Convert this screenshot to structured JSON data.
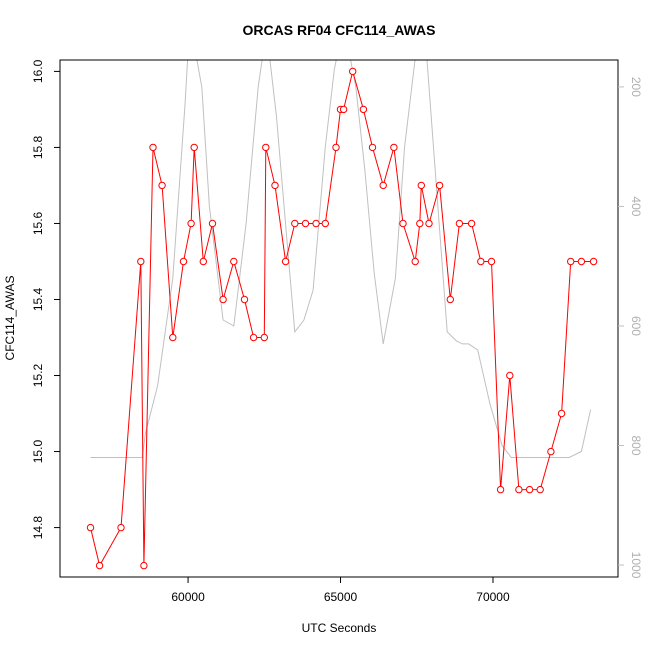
{
  "chart_data": {
    "type": "line",
    "title": "ORCAS RF04 CFC114_AWAS",
    "xlabel": "UTC Seconds",
    "ylabel": "CFC114_AWAS",
    "xlim": [
      55800,
      74100
    ],
    "ylim": [
      14.67,
      16.03
    ],
    "x_ticks": [
      60000,
      65000,
      70000
    ],
    "x_tick_labels": [
      "60000",
      "65000",
      "70000"
    ],
    "y_ticks": [
      14.8,
      15.0,
      15.2,
      15.4,
      15.6,
      15.8,
      16.0
    ],
    "y_tick_labels": [
      "14.8",
      "15.0",
      "15.2",
      "15.4",
      "15.6",
      "15.8",
      "16.0"
    ],
    "y2_reversed": true,
    "y2lim": [
      1020,
      155
    ],
    "y2_ticks": [
      200,
      400,
      600,
      800,
      1000
    ],
    "y2_tick_labels": [
      "200",
      "400",
      "600",
      "800",
      "1000"
    ],
    "grid": false,
    "legend": "none",
    "colors": {
      "primary": "#ff0000",
      "secondary": "#c0c0c0",
      "axis": "#000000"
    },
    "series": [
      {
        "x": [
          56800,
          57100,
          57800,
          58450,
          58550,
          58850,
          59150,
          59500,
          59850,
          60100,
          60200,
          60500,
          60800,
          61150,
          61500,
          61850,
          62150,
          62500,
          62550,
          62850,
          63200,
          63500,
          63850,
          64200,
          64500,
          64850,
          65000,
          65100,
          65400,
          65750,
          66050,
          66400,
          66750,
          67050,
          67450,
          67600,
          67650,
          67900,
          68250,
          68600,
          68900,
          69300,
          69600,
          69950,
          70250,
          70550,
          70850,
          71200,
          71550,
          71900,
          72250,
          72550,
          72900,
          73300
        ],
        "y": [
          14.8,
          14.7,
          14.8,
          15.5,
          14.7,
          15.8,
          15.7,
          15.3,
          15.5,
          15.6,
          15.8,
          15.5,
          15.6,
          15.4,
          15.5,
          15.4,
          15.3,
          15.3,
          15.8,
          15.7,
          15.5,
          15.6,
          15.6,
          15.6,
          15.6,
          15.8,
          15.9,
          15.9,
          16.0,
          15.9,
          15.8,
          15.7,
          15.8,
          15.6,
          15.5,
          15.6,
          15.7,
          15.6,
          15.7,
          15.4,
          15.6,
          15.6,
          15.5,
          15.5,
          14.9,
          15.2,
          14.9,
          14.9,
          14.9,
          15.0,
          15.1,
          15.5,
          15.5,
          15.5
        ]
      },
      {
        "axis": "right",
        "x": [
          56800,
          58500,
          58600,
          59000,
          59500,
          59900,
          60000,
          60200,
          60450,
          60700,
          61150,
          61500,
          61900,
          62300,
          62500,
          62650,
          62900,
          63200,
          63500,
          63800,
          64100,
          64500,
          64800,
          65000,
          65200,
          65500,
          65800,
          66100,
          66400,
          66800,
          67100,
          67500,
          67800,
          68500,
          68800,
          69000,
          69200,
          69500,
          69900,
          70300,
          70600,
          72500,
          72900,
          73200
        ],
        "y": [
          820,
          820,
          780,
          700,
          520,
          230,
          140,
          130,
          200,
          400,
          590,
          600,
          430,
          200,
          130,
          140,
          250,
          430,
          610,
          590,
          540,
          300,
          170,
          120,
          120,
          200,
          340,
          510,
          630,
          520,
          300,
          130,
          130,
          610,
          625,
          630,
          630,
          640,
          730,
          800,
          820,
          820,
          810,
          740
        ]
      }
    ]
  }
}
